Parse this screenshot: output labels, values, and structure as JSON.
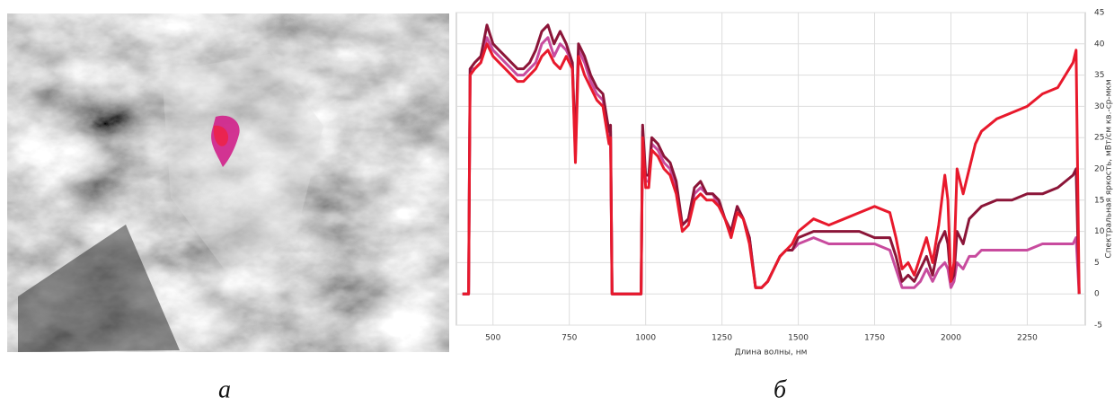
{
  "chart_data": {
    "type": "line",
    "x_label": "Длина волны, нм",
    "y_label": "Спектральная яркость, мВт/см кв.-ср-мкм",
    "x": [
      400,
      420,
      425,
      440,
      460,
      480,
      500,
      520,
      540,
      560,
      580,
      600,
      620,
      640,
      660,
      680,
      700,
      720,
      740,
      760,
      770,
      780,
      800,
      820,
      840,
      860,
      880,
      885,
      890,
      900,
      980,
      985,
      990,
      1000,
      1010,
      1020,
      1040,
      1060,
      1080,
      1100,
      1120,
      1140,
      1160,
      1180,
      1200,
      1220,
      1240,
      1260,
      1280,
      1300,
      1320,
      1340,
      1360,
      1380,
      1400,
      1420,
      1440,
      1460,
      1480,
      1500,
      1550,
      1600,
      1650,
      1700,
      1750,
      1800,
      1820,
      1840,
      1860,
      1880,
      1900,
      1920,
      1940,
      1960,
      1980,
      1990,
      2000,
      2010,
      2020,
      2040,
      2060,
      2080,
      2100,
      2150,
      2200,
      2250,
      2300,
      2350,
      2400,
      2410,
      2420
    ],
    "series": [
      {
        "color": "#e8192c",
        "values": [
          0,
          0,
          35,
          36,
          37,
          40,
          38,
          37,
          36,
          35,
          34,
          34,
          35,
          36,
          38,
          39,
          37,
          36,
          38,
          36,
          21,
          38,
          35,
          33,
          31,
          30,
          24,
          25,
          0,
          0,
          0,
          0,
          25,
          17,
          17,
          23,
          22,
          20,
          19,
          16,
          10,
          11,
          15,
          16,
          15,
          15,
          14,
          12,
          9,
          13,
          12,
          8,
          1,
          1,
          2,
          4,
          6,
          7,
          8,
          10,
          12,
          11,
          12,
          13,
          14,
          13,
          9,
          4,
          5,
          3,
          6,
          9,
          5,
          11,
          19,
          15,
          2,
          5,
          20,
          16,
          20,
          24,
          26,
          28,
          29,
          30,
          32,
          33,
          37,
          39,
          0
        ]
      },
      {
        "color": "#8b1538",
        "values": [
          0,
          0,
          36,
          37,
          38,
          43,
          40,
          39,
          38,
          37,
          36,
          36,
          37,
          39,
          42,
          43,
          40,
          42,
          40,
          37,
          23,
          40,
          38,
          35,
          33,
          32,
          26,
          27,
          0,
          0,
          0,
          0,
          27,
          19,
          19,
          25,
          24,
          22,
          21,
          18,
          11,
          12,
          17,
          18,
          16,
          16,
          15,
          12,
          10,
          14,
          12,
          9,
          1,
          1,
          2,
          4,
          6,
          7,
          7,
          9,
          10,
          10,
          10,
          10,
          9,
          9,
          6,
          2,
          3,
          2,
          4,
          6,
          3,
          8,
          10,
          8,
          2,
          3,
          10,
          8,
          12,
          13,
          14,
          15,
          15,
          16,
          16,
          17,
          19,
          20,
          0
        ]
      },
      {
        "color": "#c84b9e",
        "values": [
          0,
          0,
          36,
          36,
          37,
          41,
          39,
          38,
          37,
          36,
          35,
          35,
          36,
          37,
          40,
          41,
          38,
          40,
          39,
          37,
          22,
          39,
          37,
          34,
          32,
          31,
          25,
          26,
          0,
          0,
          0,
          0,
          26,
          18,
          18,
          24,
          23,
          21,
          20,
          17,
          11,
          12,
          16,
          17,
          16,
          16,
          14,
          12,
          10,
          14,
          12,
          9,
          1,
          1,
          2,
          4,
          6,
          7,
          7,
          8,
          9,
          8,
          8,
          8,
          8,
          7,
          4,
          1,
          1,
          1,
          2,
          4,
          2,
          4,
          5,
          4,
          1,
          2,
          5,
          4,
          6,
          6,
          7,
          7,
          7,
          7,
          8,
          8,
          8,
          9,
          0
        ]
      }
    ],
    "xlim": [
      380,
      2440
    ],
    "ylim": [
      -5,
      45
    ],
    "xticks": [
      500,
      750,
      1000,
      1250,
      1500,
      1750,
      2000,
      2250
    ],
    "yticks": [
      -5,
      0,
      5,
      10,
      15,
      20,
      25,
      30,
      35,
      40,
      45
    ],
    "grid": true,
    "y_axis_side": "right"
  },
  "captions": [
    "а",
    "б"
  ]
}
